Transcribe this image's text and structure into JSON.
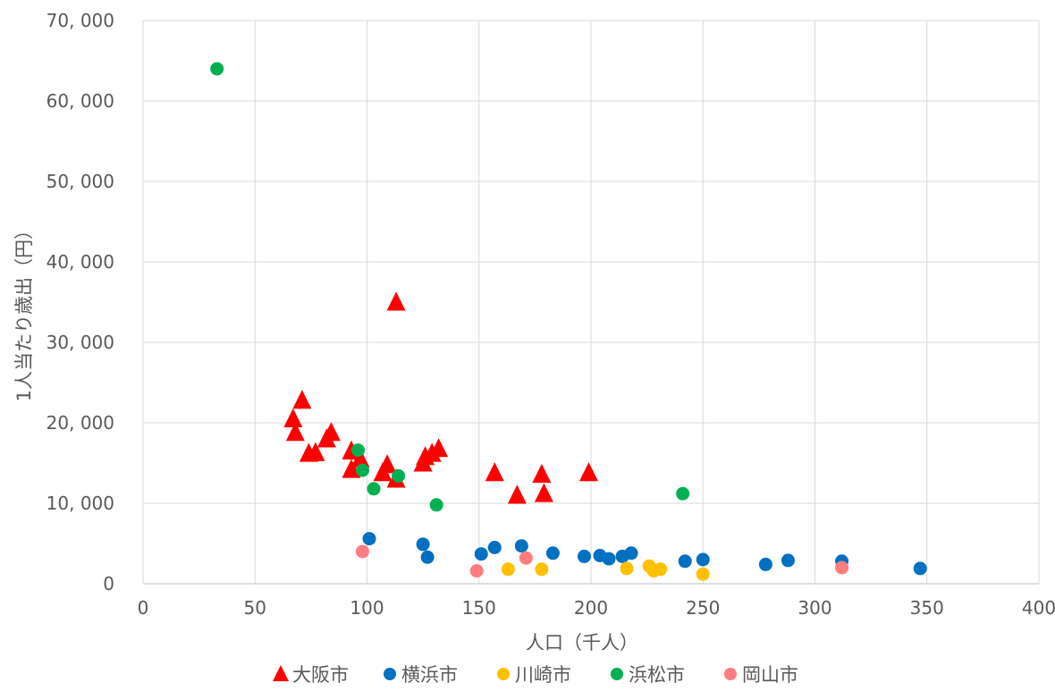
{
  "chart_data": {
    "type": "scatter",
    "title": "",
    "xlabel": "人口（千人）",
    "ylabel": "1人当たり歳出（円）",
    "xlim": [
      0,
      400
    ],
    "ylim": [
      0,
      70000
    ],
    "x_ticks": [
      0,
      50,
      100,
      150,
      200,
      250,
      300,
      350,
      400
    ],
    "y_ticks": [
      0,
      10000,
      20000,
      30000,
      40000,
      50000,
      60000,
      70000
    ],
    "x_tick_labels": [
      "0",
      "50",
      "100",
      "150",
      "200",
      "250",
      "300",
      "350",
      "400"
    ],
    "y_tick_labels": [
      "0",
      "10, 000",
      "20, 000",
      "30, 000",
      "40, 000",
      "50, 000",
      "60, 000",
      "70, 000"
    ],
    "grid": true,
    "legend_position": "bottom",
    "series": [
      {
        "name": "大阪市",
        "marker": "triangle",
        "color": "#FF0000",
        "points": [
          [
            113,
            35000
          ],
          [
            71,
            22800
          ],
          [
            67,
            20500
          ],
          [
            68,
            18800
          ],
          [
            84,
            18800
          ],
          [
            82,
            18000
          ],
          [
            74,
            16200
          ],
          [
            77,
            16300
          ],
          [
            93,
            16500
          ],
          [
            97,
            15500
          ],
          [
            93,
            14200
          ],
          [
            107,
            13800
          ],
          [
            109,
            14800
          ],
          [
            113,
            13000
          ],
          [
            125,
            15000
          ],
          [
            126,
            15800
          ],
          [
            129,
            16200
          ],
          [
            132,
            16800
          ],
          [
            157,
            13800
          ],
          [
            167,
            11000
          ],
          [
            178,
            13600
          ],
          [
            179,
            11200
          ],
          [
            199,
            13800
          ]
        ]
      },
      {
        "name": "横浜市",
        "marker": "circle",
        "color": "#0070C0",
        "points": [
          [
            101,
            5600
          ],
          [
            125,
            4900
          ],
          [
            127,
            3300
          ],
          [
            151,
            3700
          ],
          [
            157,
            4500
          ],
          [
            169,
            4700
          ],
          [
            183,
            3800
          ],
          [
            197,
            3400
          ],
          [
            204,
            3500
          ],
          [
            208,
            3100
          ],
          [
            214,
            3400
          ],
          [
            218,
            3800
          ],
          [
            242,
            2800
          ],
          [
            250,
            3000
          ],
          [
            278,
            2400
          ],
          [
            288,
            2900
          ],
          [
            312,
            2800
          ],
          [
            347,
            1900
          ]
        ]
      },
      {
        "name": "川崎市",
        "marker": "circle",
        "color": "#FFC000",
        "points": [
          [
            163,
            1800
          ],
          [
            178,
            1800
          ],
          [
            216,
            1900
          ],
          [
            226,
            2200
          ],
          [
            228,
            1600
          ],
          [
            231,
            1800
          ],
          [
            250,
            1200
          ]
        ]
      },
      {
        "name": "浜松市",
        "marker": "circle",
        "color": "#00B050",
        "points": [
          [
            33,
            64000
          ],
          [
            96,
            16600
          ],
          [
            98,
            14100
          ],
          [
            103,
            11800
          ],
          [
            114,
            13400
          ],
          [
            131,
            9800
          ],
          [
            241,
            11200
          ]
        ]
      },
      {
        "name": "岡山市",
        "marker": "circle",
        "color": "#FF7C80",
        "points": [
          [
            98,
            4000
          ],
          [
            149,
            1600
          ],
          [
            171,
            3200
          ],
          [
            312,
            2000
          ]
        ]
      }
    ]
  }
}
